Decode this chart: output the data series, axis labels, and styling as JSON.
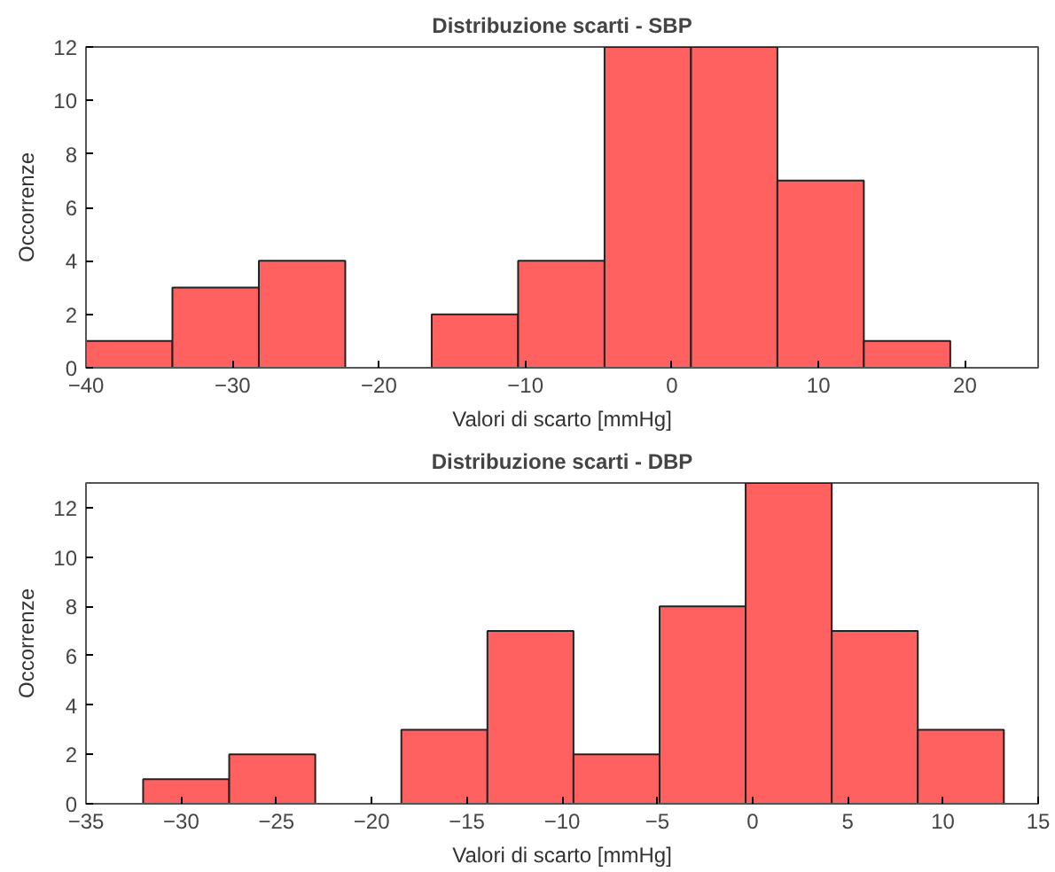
{
  "chart_data": [
    {
      "type": "histogram",
      "title": "Distribuzione scarti - SBP",
      "xlabel": "Valori di scarto [mmHg]",
      "ylabel": "Occorrenze",
      "bins": [
        -40,
        -34.1,
        -28.2,
        -22.3,
        -16.4,
        -10.5,
        -4.6,
        1.3,
        7.2,
        13.1,
        19.0
      ],
      "values": [
        1,
        3,
        4,
        0,
        2,
        4,
        12,
        12,
        7,
        1
      ],
      "color": "#ff6161",
      "xlim": [
        -40,
        25
      ],
      "xticks": [
        -40,
        -30,
        -20,
        -10,
        0,
        10,
        20
      ],
      "ylim": [
        0,
        12
      ],
      "yticks": [
        0,
        2,
        4,
        6,
        8,
        10,
        12
      ],
      "grid": false
    },
    {
      "type": "histogram",
      "title": "Distribuzione scarti - DBP",
      "xlabel": "Valori di scarto [mmHg]",
      "ylabel": "Occorrenze",
      "bins": [
        -32,
        -27.48,
        -22.96,
        -18.44,
        -13.92,
        -9.4,
        -4.88,
        -0.36,
        4.16,
        8.68,
        13.2
      ],
      "values": [
        1,
        2,
        0,
        3,
        7,
        2,
        8,
        13,
        7,
        3
      ],
      "color": "#ff6161",
      "xlim": [
        -35,
        15
      ],
      "xticks": [
        -35,
        -30,
        -25,
        -20,
        -15,
        -10,
        -5,
        0,
        5,
        10,
        15
      ],
      "ylim": [
        0,
        13
      ],
      "yticks": [
        0,
        2,
        4,
        6,
        8,
        10,
        12
      ],
      "grid": false
    }
  ]
}
